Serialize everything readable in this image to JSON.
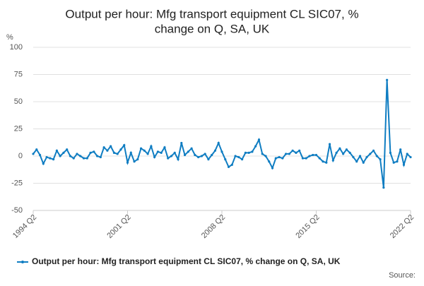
{
  "chart_data": {
    "type": "line",
    "title": "Output per hour: Mfg transport equipment CL SIC07, % change on Q, SA, UK",
    "y_label": "%",
    "source": "Source:",
    "categories": [
      "1994 Q2",
      null,
      null,
      null,
      null,
      null,
      null,
      null,
      null,
      null,
      null,
      null,
      null,
      null,
      null,
      null,
      null,
      null,
      null,
      null,
      null,
      null,
      null,
      null,
      null,
      null,
      null,
      null,
      "2001 Q2",
      null,
      null,
      null,
      null,
      null,
      null,
      null,
      null,
      null,
      null,
      null,
      null,
      null,
      null,
      null,
      null,
      null,
      null,
      null,
      null,
      null,
      null,
      null,
      null,
      null,
      null,
      null,
      "2008 Q2",
      null,
      null,
      null,
      null,
      null,
      null,
      null,
      null,
      null,
      null,
      null,
      null,
      null,
      null,
      null,
      null,
      null,
      null,
      null,
      null,
      null,
      null,
      null,
      null,
      null,
      null,
      null,
      "2015 Q2",
      null,
      null,
      null,
      null,
      null,
      null,
      null,
      null,
      null,
      null,
      null,
      null,
      null,
      null,
      null,
      null,
      null,
      null,
      null,
      null,
      null,
      null,
      null,
      null,
      null,
      null,
      null,
      "2022 Q2"
    ],
    "series": [
      {
        "name": "Output per hour: Mfg transport equipment CL SIC07, % change on Q, SA, UK",
        "color": "#0f7dc2",
        "values": [
          2,
          6,
          1,
          -7,
          -1,
          -2,
          -3,
          5,
          0,
          3,
          6,
          0,
          -2,
          2,
          0,
          -2,
          -2,
          3,
          4,
          0,
          -1,
          8,
          5,
          9,
          3,
          2,
          6,
          10,
          -6,
          3,
          -5,
          -3,
          7,
          5,
          2,
          9,
          -1,
          4,
          3,
          8,
          -2,
          0,
          3,
          -3,
          12,
          1,
          4,
          7,
          1,
          -1,
          0,
          2,
          -3,
          1,
          5,
          12,
          4,
          -3,
          -10,
          -8,
          0,
          -1,
          -3,
          3,
          3,
          4,
          9,
          15,
          2,
          0,
          -5,
          -11,
          -2,
          -1,
          -2,
          2,
          2,
          5,
          3,
          5,
          -2,
          -2,
          0,
          1,
          1,
          -2,
          -5,
          -6,
          11,
          -4,
          3,
          7,
          2,
          6,
          3,
          -1,
          -5,
          0,
          -6,
          -1,
          2,
          5,
          0,
          -3,
          -29,
          70,
          3,
          -6,
          -5,
          6,
          -8,
          2,
          -1
        ]
      }
    ],
    "ylim": [
      -50,
      100
    ],
    "yticks": [
      -50,
      -25,
      0,
      25,
      50,
      75,
      100
    ],
    "grid": true
  }
}
